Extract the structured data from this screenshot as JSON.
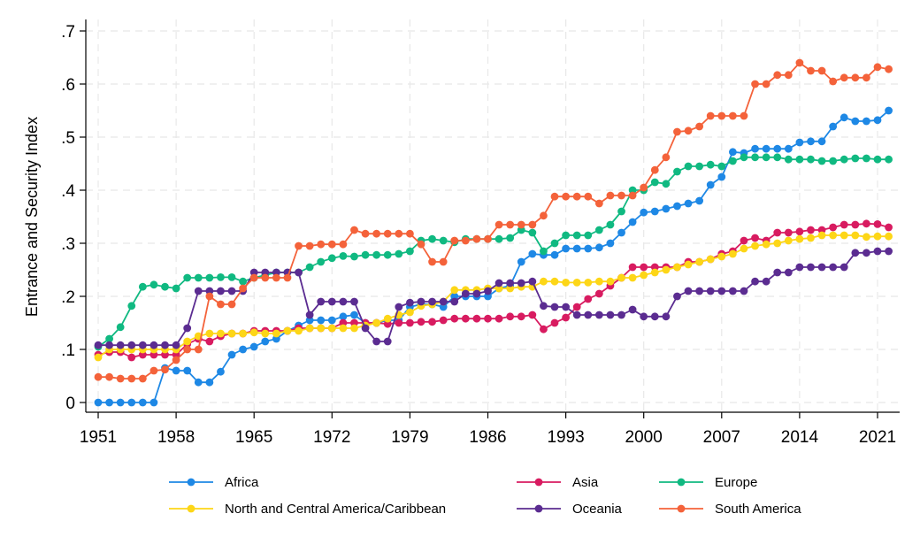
{
  "chart_data": {
    "type": "line",
    "title": "",
    "xlabel": "",
    "ylabel": "Entrance and Security Index",
    "xlim": [
      1950,
      2023
    ],
    "ylim": [
      0,
      0.7
    ],
    "grid": true,
    "legend_position": "bottom",
    "x_ticks": [
      1951,
      1958,
      1965,
      1972,
      1979,
      1986,
      1993,
      2000,
      2007,
      2014,
      2021
    ],
    "x_tick_labels": [
      "1951",
      "1958",
      "1965",
      "1972",
      "1979",
      "1986",
      "1993",
      "2000",
      "2007",
      "2014",
      "2021"
    ],
    "y_ticks": [
      0,
      0.1,
      0.2,
      0.3,
      0.4,
      0.5,
      0.6,
      0.7
    ],
    "y_tick_labels": [
      "0",
      ".1",
      ".2",
      ".3",
      ".4",
      ".5",
      ".6",
      ".7"
    ],
    "x": [
      1951,
      1952,
      1953,
      1954,
      1955,
      1956,
      1957,
      1958,
      1959,
      1960,
      1961,
      1962,
      1963,
      1964,
      1965,
      1966,
      1967,
      1968,
      1969,
      1970,
      1971,
      1972,
      1973,
      1974,
      1975,
      1976,
      1977,
      1978,
      1979,
      1980,
      1981,
      1982,
      1983,
      1984,
      1985,
      1986,
      1987,
      1988,
      1989,
      1990,
      1991,
      1992,
      1993,
      1994,
      1995,
      1996,
      1997,
      1998,
      1999,
      2000,
      2001,
      2002,
      2003,
      2004,
      2005,
      2006,
      2007,
      2008,
      2009,
      2010,
      2011,
      2012,
      2013,
      2014,
      2015,
      2016,
      2017,
      2018,
      2019,
      2020,
      2021,
      2022
    ],
    "series": [
      {
        "name": "Africa",
        "color": "#1e88e5",
        "values": [
          0,
          0,
          0,
          0,
          0,
          0,
          0.065,
          0.06,
          0.06,
          0.038,
          0.038,
          0.058,
          0.09,
          0.1,
          0.105,
          0.115,
          0.12,
          0.135,
          0.145,
          0.155,
          0.155,
          0.155,
          0.162,
          0.165,
          0.15,
          0.15,
          0.155,
          0.155,
          0.18,
          0.185,
          0.185,
          0.18,
          0.2,
          0.2,
          0.2,
          0.2,
          0.215,
          0.22,
          0.265,
          0.28,
          0.278,
          0.278,
          0.29,
          0.29,
          0.29,
          0.292,
          0.3,
          0.32,
          0.34,
          0.358,
          0.36,
          0.365,
          0.37,
          0.375,
          0.38,
          0.41,
          0.425,
          0.472,
          0.47,
          0.478,
          0.478,
          0.478,
          0.478,
          0.49,
          0.492,
          0.492,
          0.52,
          0.537,
          0.53,
          0.53,
          0.532,
          0.55
        ]
      },
      {
        "name": "Asia",
        "color": "#d81b60",
        "values": [
          0.09,
          0.095,
          0.095,
          0.085,
          0.09,
          0.09,
          0.09,
          0.09,
          0.11,
          0.12,
          0.115,
          0.125,
          0.13,
          0.13,
          0.135,
          0.135,
          0.135,
          0.135,
          0.14,
          0.14,
          0.14,
          0.14,
          0.15,
          0.15,
          0.15,
          0.15,
          0.148,
          0.15,
          0.15,
          0.152,
          0.152,
          0.155,
          0.158,
          0.158,
          0.158,
          0.158,
          0.158,
          0.162,
          0.162,
          0.165,
          0.138,
          0.15,
          0.16,
          0.18,
          0.195,
          0.205,
          0.22,
          0.235,
          0.255,
          0.255,
          0.255,
          0.255,
          0.255,
          0.265,
          0.265,
          0.27,
          0.28,
          0.285,
          0.305,
          0.31,
          0.305,
          0.32,
          0.32,
          0.322,
          0.325,
          0.325,
          0.33,
          0.335,
          0.335,
          0.337,
          0.336,
          0.33
        ]
      },
      {
        "name": "Europe",
        "color": "#10b981",
        "values": [
          0.105,
          0.12,
          0.142,
          0.182,
          0.218,
          0.222,
          0.218,
          0.215,
          0.235,
          0.235,
          0.235,
          0.236,
          0.236,
          0.228,
          0.235,
          0.24,
          0.245,
          0.245,
          0.245,
          0.255,
          0.265,
          0.272,
          0.276,
          0.275,
          0.278,
          0.278,
          0.278,
          0.28,
          0.285,
          0.305,
          0.308,
          0.305,
          0.302,
          0.308,
          0.308,
          0.308,
          0.308,
          0.31,
          0.325,
          0.32,
          0.285,
          0.3,
          0.315,
          0.315,
          0.315,
          0.325,
          0.335,
          0.36,
          0.4,
          0.4,
          0.415,
          0.412,
          0.435,
          0.445,
          0.445,
          0.448,
          0.445,
          0.455,
          0.462,
          0.462,
          0.462,
          0.462,
          0.458,
          0.458,
          0.458,
          0.455,
          0.455,
          0.458,
          0.46,
          0.46,
          0.458,
          0.458
        ]
      },
      {
        "name": "North and Central America/Caribbean",
        "color": "#fdd617",
        "values": [
          0.085,
          0.1,
          0.1,
          0.1,
          0.1,
          0.1,
          0.1,
          0.1,
          0.115,
          0.125,
          0.13,
          0.13,
          0.13,
          0.13,
          0.132,
          0.13,
          0.13,
          0.135,
          0.135,
          0.14,
          0.14,
          0.14,
          0.14,
          0.14,
          0.145,
          0.15,
          0.158,
          0.165,
          0.17,
          0.182,
          0.185,
          0.19,
          0.212,
          0.212,
          0.212,
          0.215,
          0.215,
          0.215,
          0.218,
          0.218,
          0.228,
          0.228,
          0.226,
          0.226,
          0.226,
          0.228,
          0.228,
          0.235,
          0.235,
          0.24,
          0.245,
          0.25,
          0.255,
          0.26,
          0.265,
          0.27,
          0.275,
          0.28,
          0.29,
          0.295,
          0.298,
          0.3,
          0.305,
          0.308,
          0.31,
          0.315,
          0.315,
          0.315,
          0.315,
          0.312,
          0.313,
          0.313
        ]
      },
      {
        "name": "Oceania",
        "color": "#5b2c91",
        "values": [
          0.108,
          0.108,
          0.108,
          0.108,
          0.108,
          0.108,
          0.108,
          0.108,
          0.14,
          0.21,
          0.21,
          0.21,
          0.21,
          0.21,
          0.245,
          0.245,
          0.245,
          0.245,
          0.245,
          0.165,
          0.19,
          0.19,
          0.19,
          0.19,
          0.14,
          0.115,
          0.115,
          0.18,
          0.188,
          0.19,
          0.19,
          0.19,
          0.19,
          0.205,
          0.205,
          0.21,
          0.225,
          0.225,
          0.225,
          0.228,
          0.182,
          0.18,
          0.18,
          0.165,
          0.165,
          0.165,
          0.165,
          0.165,
          0.175,
          0.162,
          0.162,
          0.162,
          0.2,
          0.21,
          0.21,
          0.21,
          0.21,
          0.21,
          0.21,
          0.228,
          0.228,
          0.245,
          0.245,
          0.255,
          0.255,
          0.255,
          0.255,
          0.255,
          0.282,
          0.282,
          0.285,
          0.285
        ]
      },
      {
        "name": "South America",
        "color": "#f4623a",
        "values": [
          0.048,
          0.048,
          0.045,
          0.045,
          0.045,
          0.06,
          0.062,
          0.08,
          0.1,
          0.1,
          0.2,
          0.185,
          0.185,
          0.215,
          0.235,
          0.235,
          0.235,
          0.235,
          0.295,
          0.295,
          0.298,
          0.298,
          0.298,
          0.325,
          0.318,
          0.318,
          0.318,
          0.318,
          0.318,
          0.298,
          0.265,
          0.265,
          0.305,
          0.305,
          0.308,
          0.308,
          0.335,
          0.335,
          0.335,
          0.335,
          0.352,
          0.388,
          0.388,
          0.388,
          0.388,
          0.375,
          0.39,
          0.39,
          0.39,
          0.405,
          0.438,
          0.462,
          0.51,
          0.512,
          0.52,
          0.54,
          0.54,
          0.54,
          0.54,
          0.6,
          0.6,
          0.617,
          0.617,
          0.64,
          0.625,
          0.625,
          0.605,
          0.612,
          0.612,
          0.612,
          0.632,
          0.628
        ]
      }
    ],
    "legend": [
      {
        "name": "Africa",
        "color": "#1e88e5"
      },
      {
        "name": "Asia",
        "color": "#d81b60"
      },
      {
        "name": "Europe",
        "color": "#10b981"
      },
      {
        "name": "North and Central America/Caribbean",
        "color": "#fdd617"
      },
      {
        "name": "Oceania",
        "color": "#5b2c91"
      },
      {
        "name": "South America",
        "color": "#f4623a"
      }
    ]
  }
}
